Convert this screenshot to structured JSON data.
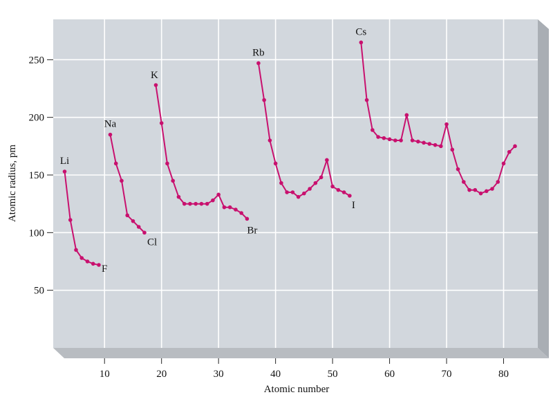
{
  "chart_data": {
    "type": "line",
    "title": "",
    "xlabel": "Atomic number",
    "ylabel": "Atomic radius, pm",
    "xlim": [
      1,
      86
    ],
    "ylim": [
      0,
      285
    ],
    "x_ticks": [
      10,
      20,
      30,
      40,
      50,
      60,
      70,
      80
    ],
    "y_ticks": [
      50,
      100,
      150,
      200,
      250
    ],
    "grid": true,
    "line_color": "#c8106e",
    "plot_bg": "#d2d7dd",
    "series": [
      {
        "x": [
          3,
          4,
          5,
          6,
          7,
          8,
          9
        ],
        "y": [
          153,
          111,
          85,
          78,
          75,
          73,
          72
        ]
      },
      {
        "x": [
          11,
          12,
          13,
          14,
          15,
          16,
          17
        ],
        "y": [
          185,
          160,
          145,
          115,
          110,
          105,
          100
        ]
      },
      {
        "x": [
          19,
          20,
          21,
          22,
          23,
          24,
          25,
          26,
          27,
          28,
          29,
          30,
          31,
          32,
          33,
          34,
          35
        ],
        "y": [
          228,
          195,
          160,
          145,
          131,
          125,
          125,
          125,
          125,
          125,
          128,
          133,
          122,
          122,
          120,
          117,
          112
        ]
      },
      {
        "x": [
          37,
          38,
          39,
          40,
          41,
          42,
          43,
          44,
          45,
          46,
          47,
          48,
          49,
          50,
          51,
          52,
          53
        ],
        "y": [
          247,
          215,
          180,
          160,
          143,
          135,
          135,
          131,
          134,
          138,
          143,
          148,
          163,
          140,
          137,
          135,
          132
        ]
      },
      {
        "x": [
          55,
          56,
          57,
          58,
          59,
          60,
          61,
          62,
          63,
          64,
          65,
          66,
          67,
          68,
          69,
          70,
          71,
          72,
          73,
          74,
          75,
          76,
          77,
          78,
          79,
          80,
          81,
          82
        ],
        "y": [
          265,
          215,
          189,
          183,
          182,
          181,
          180,
          180,
          202,
          180,
          179,
          178,
          177,
          176,
          175,
          194,
          172,
          155,
          144,
          137,
          137,
          134,
          136,
          138,
          144,
          160,
          170,
          175
        ]
      }
    ],
    "annotations": [
      {
        "text": "Li",
        "x": 3,
        "y": 153
      },
      {
        "text": "F",
        "x": 9,
        "y": 72
      },
      {
        "text": "Na",
        "x": 11,
        "y": 185
      },
      {
        "text": "Cl",
        "x": 17,
        "y": 100
      },
      {
        "text": "K",
        "x": 19,
        "y": 228
      },
      {
        "text": "Br",
        "x": 35,
        "y": 112
      },
      {
        "text": "Rb",
        "x": 37,
        "y": 247
      },
      {
        "text": "I",
        "x": 53,
        "y": 132
      },
      {
        "text": "Cs",
        "x": 55,
        "y": 265
      }
    ]
  }
}
